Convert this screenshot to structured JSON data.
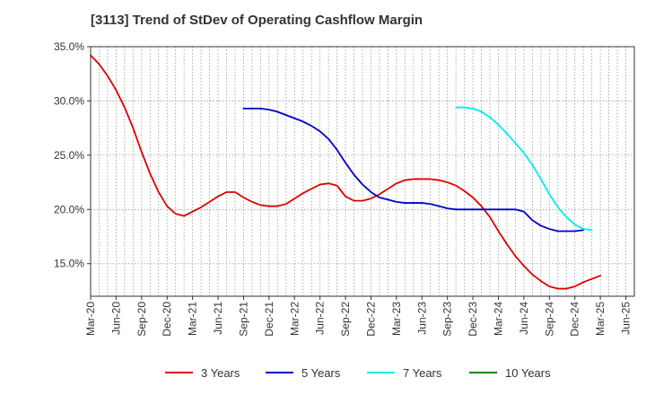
{
  "chart_data": {
    "type": "line",
    "title": "[3113]  Trend of StDev of Operating Cashflow Margin",
    "xlabel": "",
    "ylabel": "",
    "ylim": [
      12.0,
      35.0
    ],
    "yticks": [
      15,
      20,
      25,
      30,
      35
    ],
    "ytick_labels": [
      "15.0%",
      "20.0%",
      "25.0%",
      "30.0%",
      "35.0%"
    ],
    "x_start": "Mar-20",
    "x_count": 65,
    "xtick_labels": [
      "Mar-20",
      "Jun-20",
      "Sep-20",
      "Dec-20",
      "Mar-21",
      "Jun-21",
      "Sep-21",
      "Dec-21",
      "Mar-22",
      "Jun-22",
      "Sep-22",
      "Dec-22",
      "Mar-23",
      "Jun-23",
      "Sep-23",
      "Dec-23",
      "Mar-24",
      "Jun-24",
      "Sep-24",
      "Dec-24",
      "Mar-25",
      "Jun-25"
    ],
    "grid": true,
    "legend_position": "bottom",
    "series": [
      {
        "name": "3 Years",
        "color": "#dd0000",
        "start_index": 0,
        "values": [
          34.2,
          33.4,
          32.3,
          31.0,
          29.4,
          27.5,
          25.3,
          23.3,
          21.6,
          20.3,
          19.6,
          19.4,
          19.8,
          20.2,
          20.7,
          21.2,
          21.6,
          21.6,
          21.1,
          20.7,
          20.4,
          20.3,
          20.3,
          20.5,
          21.0,
          21.5,
          21.9,
          22.3,
          22.4,
          22.2,
          21.2,
          20.8,
          20.8,
          21.0,
          21.4,
          21.9,
          22.4,
          22.7,
          22.8,
          22.8,
          22.8,
          22.7,
          22.5,
          22.2,
          21.7,
          21.1,
          20.3,
          19.3,
          18.0,
          16.8,
          15.7,
          14.8,
          14.0,
          13.4,
          12.9,
          12.7,
          12.7,
          12.9,
          13.3,
          13.6,
          13.9
        ]
      },
      {
        "name": "5 Years",
        "color": "#0000cc",
        "start_index": 18,
        "values": [
          29.3,
          29.3,
          29.3,
          29.2,
          29.0,
          28.7,
          28.4,
          28.1,
          27.7,
          27.2,
          26.5,
          25.5,
          24.3,
          23.2,
          22.3,
          21.6,
          21.1,
          20.9,
          20.7,
          20.6,
          20.6,
          20.6,
          20.5,
          20.3,
          20.1,
          20.0,
          20.0,
          20.0,
          20.0,
          20.0,
          20.0,
          20.0,
          20.0,
          19.8,
          19.0,
          18.5,
          18.2,
          18.0,
          18.0,
          18.0,
          18.1
        ]
      },
      {
        "name": "7 Years",
        "color": "#00eeee",
        "start_index": 43,
        "values": [
          29.4,
          29.4,
          29.3,
          29.0,
          28.5,
          27.8,
          27.0,
          26.1,
          25.2,
          24.1,
          22.8,
          21.4,
          20.2,
          19.3,
          18.6,
          18.2,
          18.1
        ]
      },
      {
        "name": "10 Years",
        "color": "#008800",
        "start_index": 0,
        "values": []
      }
    ]
  }
}
